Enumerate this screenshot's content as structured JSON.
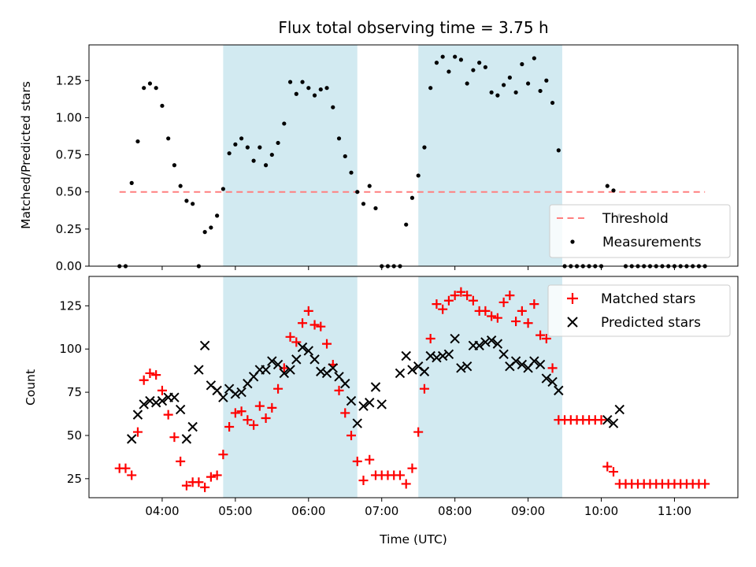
{
  "chart_data": [
    {
      "type": "scatter",
      "panel": "top",
      "title": "Flux total observing time = 3.75 h",
      "xlabel": "",
      "ylabel": "Matched/Predicted stars",
      "ylim": [
        0,
        1.49
      ],
      "yticks": [
        0.0,
        0.25,
        0.5,
        0.75,
        1.0,
        1.25
      ],
      "ytick_labels": [
        "0.00",
        "0.25",
        "0.50",
        "0.75",
        "1.00",
        "1.25"
      ],
      "grid": false,
      "legend_position": "lower-right",
      "highlight_color": "#add8e6",
      "threshold": {
        "name": "Threshold",
        "value": 0.5,
        "x_start": "03:25",
        "x_end": "11:25",
        "color": "#ff7f7f",
        "style": "dashed"
      },
      "series": [
        {
          "name": "Measurements",
          "color": "#000000",
          "marker": "dot",
          "x": [
            "03:25",
            "03:30",
            "03:35",
            "03:40",
            "03:45",
            "03:50",
            "03:55",
            "04:00",
            "04:05",
            "04:10",
            "04:15",
            "04:20",
            "04:25",
            "04:30",
            "04:35",
            "04:40",
            "04:45",
            "04:50",
            "04:55",
            "05:00",
            "05:05",
            "05:10",
            "05:15",
            "05:20",
            "05:25",
            "05:30",
            "05:35",
            "05:40",
            "05:45",
            "05:50",
            "05:55",
            "06:00",
            "06:05",
            "06:10",
            "06:15",
            "06:20",
            "06:25",
            "06:30",
            "06:35",
            "06:40",
            "06:45",
            "06:50",
            "06:55",
            "07:00",
            "07:05",
            "07:10",
            "07:15",
            "07:20",
            "07:25",
            "07:30",
            "07:35",
            "07:40",
            "07:45",
            "07:50",
            "07:55",
            "08:00",
            "08:05",
            "08:10",
            "08:15",
            "08:20",
            "08:25",
            "08:30",
            "08:35",
            "08:40",
            "08:45",
            "08:50",
            "08:55",
            "09:00",
            "09:05",
            "09:10",
            "09:15",
            "09:20",
            "09:25",
            "09:30",
            "09:35",
            "09:40",
            "09:45",
            "09:50",
            "09:55",
            "10:00",
            "10:05",
            "10:10",
            "10:15",
            "10:20",
            "10:25",
            "10:30",
            "10:35",
            "10:40",
            "10:45",
            "10:50",
            "10:55",
            "11:00",
            "11:05",
            "11:10",
            "11:15",
            "11:20",
            "11:25"
          ],
          "y": [
            0.0,
            0.0,
            0.56,
            0.84,
            1.2,
            1.23,
            1.2,
            1.08,
            0.86,
            0.68,
            0.54,
            0.44,
            0.42,
            0.0,
            0.23,
            0.26,
            0.34,
            0.52,
            0.76,
            0.82,
            0.86,
            0.8,
            0.71,
            0.8,
            0.68,
            0.75,
            0.83,
            0.96,
            1.24,
            1.16,
            1.24,
            1.2,
            1.15,
            1.19,
            1.2,
            1.07,
            0.86,
            0.74,
            0.63,
            0.5,
            0.42,
            0.54,
            0.39,
            0.0,
            0.0,
            0.0,
            0.0,
            0.28,
            0.46,
            0.61,
            0.8,
            1.2,
            1.37,
            1.41,
            1.31,
            1.41,
            1.39,
            1.23,
            1.32,
            1.37,
            1.34,
            1.17,
            1.15,
            1.22,
            1.27,
            1.17,
            1.36,
            1.23,
            1.4,
            1.18,
            1.25,
            1.1,
            0.78,
            0.0,
            0.0,
            0.0,
            0.0,
            0.0,
            0.0,
            0.0,
            0.54,
            0.51,
            0.34,
            0.0,
            0.0,
            0.0,
            0.0,
            0.0,
            0.0,
            0.0,
            0.0,
            0.0,
            0.0,
            0.0,
            0.0,
            0.0,
            0.0
          ]
        }
      ]
    },
    {
      "type": "scatter",
      "panel": "bottom",
      "xlabel": "Time (UTC)",
      "ylabel": "Count",
      "ylim": [
        14,
        142
      ],
      "yticks": [
        25,
        50,
        75,
        100,
        125
      ],
      "ytick_labels": [
        "25",
        "50",
        "75",
        "100",
        "125"
      ],
      "xlim": [
        "03:00",
        "11:52"
      ],
      "xticks": [
        "04:00",
        "05:00",
        "06:00",
        "07:00",
        "08:00",
        "09:00",
        "10:00",
        "11:00"
      ],
      "grid": false,
      "legend_position": "upper-right",
      "highlights": [
        {
          "start": "04:50",
          "end": "06:40"
        },
        {
          "start": "07:30",
          "end": "09:28"
        }
      ],
      "series": [
        {
          "name": "Matched stars",
          "color": "#ff0000",
          "marker": "plus",
          "x": [
            "03:25",
            "03:30",
            "03:35",
            "03:40",
            "03:45",
            "03:50",
            "03:55",
            "04:00",
            "04:05",
            "04:10",
            "04:15",
            "04:20",
            "04:25",
            "04:30",
            "04:35",
            "04:40",
            "04:45",
            "04:50",
            "04:55",
            "05:00",
            "05:05",
            "05:10",
            "05:15",
            "05:20",
            "05:25",
            "05:30",
            "05:35",
            "05:40",
            "05:45",
            "05:50",
            "05:55",
            "06:00",
            "06:05",
            "06:10",
            "06:15",
            "06:20",
            "06:25",
            "06:30",
            "06:35",
            "06:40",
            "06:45",
            "06:50",
            "06:55",
            "07:00",
            "07:05",
            "07:10",
            "07:15",
            "07:20",
            "07:25",
            "07:30",
            "07:35",
            "07:40",
            "07:45",
            "07:50",
            "07:55",
            "08:00",
            "08:05",
            "08:10",
            "08:15",
            "08:20",
            "08:25",
            "08:30",
            "08:35",
            "08:40",
            "08:45",
            "08:50",
            "08:55",
            "09:00",
            "09:05",
            "09:10",
            "09:15",
            "09:20",
            "09:25",
            "09:30",
            "09:35",
            "09:40",
            "09:45",
            "09:50",
            "09:55",
            "10:00",
            "10:05",
            "10:10",
            "10:15",
            "10:20",
            "10:25",
            "10:30",
            "10:35",
            "10:40",
            "10:45",
            "10:50",
            "10:55",
            "11:00",
            "11:05",
            "11:10",
            "11:15",
            "11:20",
            "11:25"
          ],
          "y": [
            31,
            31,
            27,
            52,
            82,
            86,
            85,
            76,
            62,
            49,
            35,
            21,
            23,
            23,
            20,
            26,
            27,
            39,
            55,
            63,
            64,
            59,
            56,
            67,
            60,
            66,
            77,
            89,
            107,
            104,
            115,
            122,
            114,
            113,
            103,
            91,
            76,
            63,
            50,
            35,
            24,
            36,
            27,
            27,
            27,
            27,
            27,
            22,
            31,
            52,
            77,
            106,
            126,
            123,
            128,
            131,
            133,
            131,
            128,
            122,
            122,
            119,
            118,
            127,
            131,
            116,
            122,
            115,
            126,
            108,
            106,
            89,
            59,
            59,
            59,
            59,
            59,
            59,
            59,
            59,
            32,
            29,
            22,
            22,
            22,
            22,
            22,
            22,
            22,
            22,
            22,
            22,
            22,
            22,
            22,
            22,
            22
          ]
        },
        {
          "name": "Predicted stars",
          "color": "#000000",
          "marker": "x",
          "x": [
            "03:35",
            "03:40",
            "03:45",
            "03:50",
            "03:55",
            "04:00",
            "04:05",
            "04:10",
            "04:15",
            "04:20",
            "04:25",
            "04:30",
            "04:35",
            "04:40",
            "04:45",
            "04:50",
            "04:55",
            "05:00",
            "05:05",
            "05:10",
            "05:15",
            "05:20",
            "05:25",
            "05:30",
            "05:35",
            "05:40",
            "05:45",
            "05:50",
            "05:55",
            "06:00",
            "06:05",
            "06:10",
            "06:15",
            "06:20",
            "06:25",
            "06:30",
            "06:35",
            "06:40",
            "06:45",
            "06:50",
            "06:55",
            "07:00",
            "07:15",
            "07:20",
            "07:25",
            "07:30",
            "07:35",
            "07:40",
            "07:45",
            "07:50",
            "07:55",
            "08:00",
            "08:05",
            "08:10",
            "08:15",
            "08:20",
            "08:25",
            "08:30",
            "08:35",
            "08:40",
            "08:45",
            "08:50",
            "08:55",
            "09:00",
            "09:05",
            "09:10",
            "09:15",
            "09:20",
            "09:25",
            "10:05",
            "10:10",
            "10:15"
          ],
          "y": [
            48,
            62,
            68,
            70,
            69,
            70,
            72,
            72,
            65,
            48,
            55,
            88,
            102,
            79,
            76,
            72,
            77,
            74,
            75,
            80,
            84,
            88,
            88,
            93,
            91,
            86,
            88,
            94,
            101,
            99,
            94,
            87,
            86,
            89,
            84,
            80,
            70,
            57,
            67,
            69,
            78,
            68,
            86,
            96,
            88,
            90,
            87,
            96,
            95,
            96,
            97,
            106,
            89,
            90,
            102,
            102,
            104,
            105,
            103,
            97,
            90,
            93,
            91,
            89,
            93,
            91,
            83,
            81,
            76,
            59,
            57,
            65
          ]
        }
      ]
    }
  ]
}
